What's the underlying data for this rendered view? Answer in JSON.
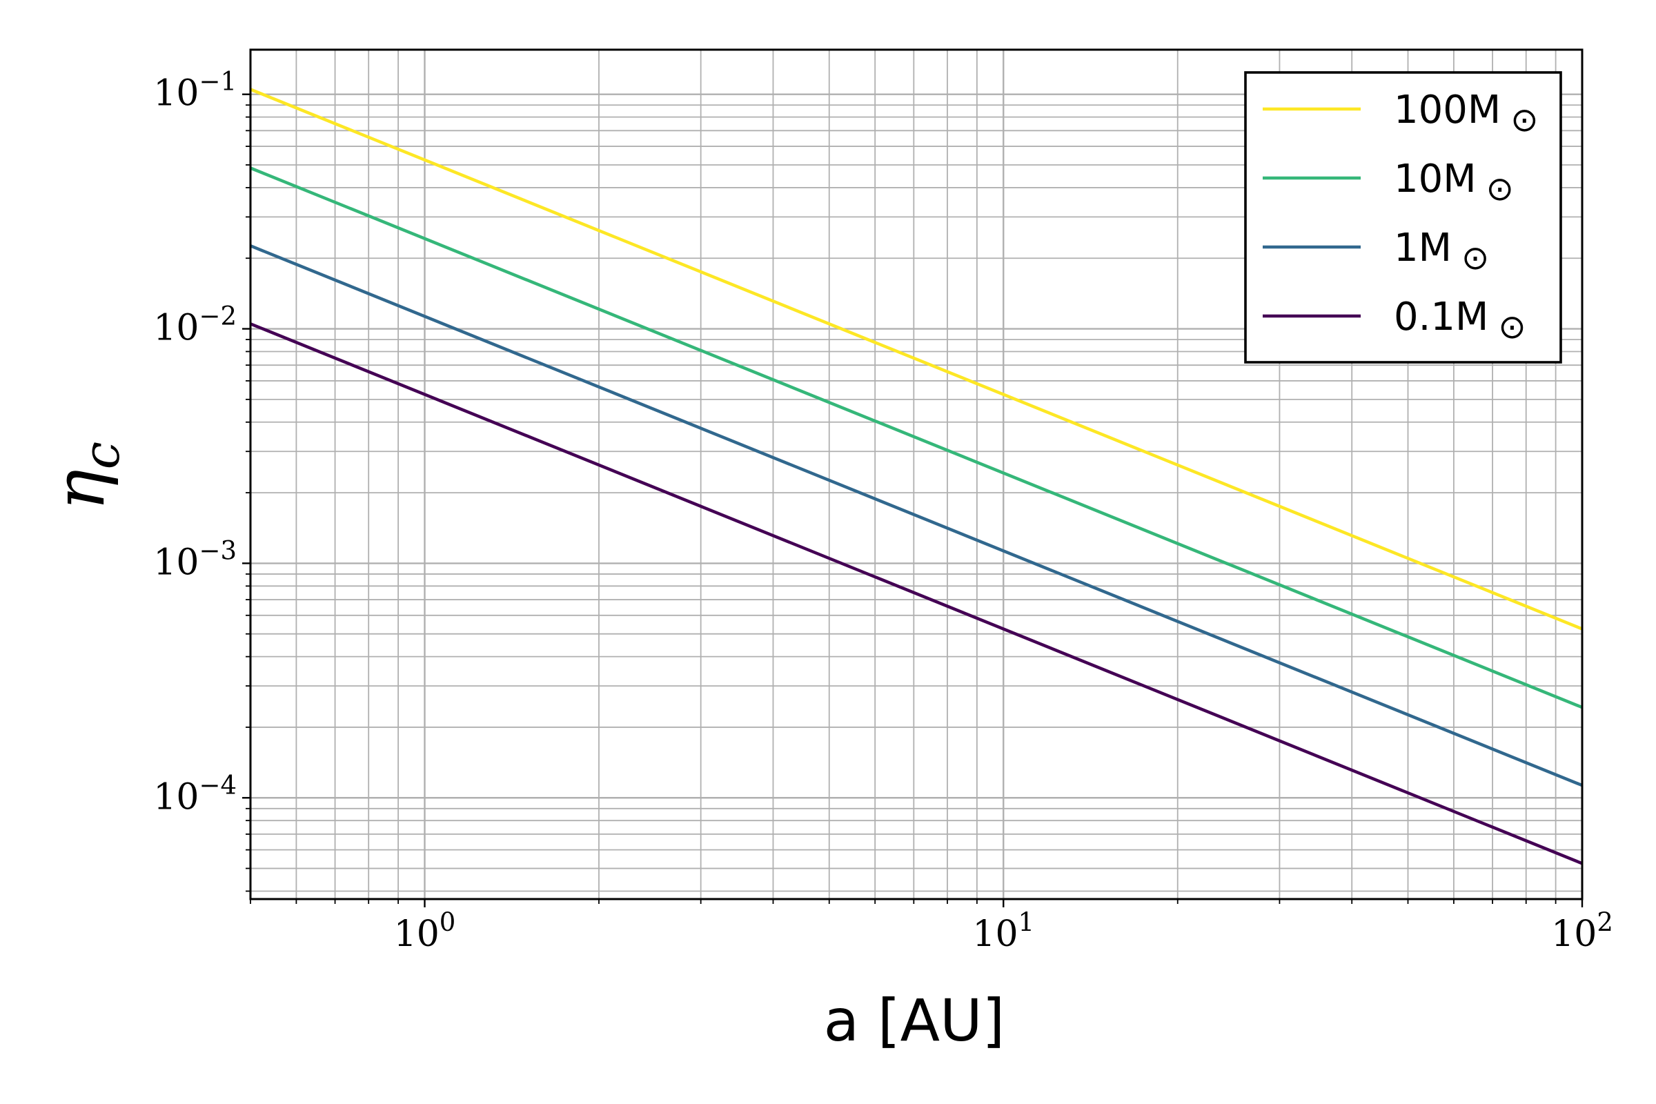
{
  "chart_data": {
    "type": "line",
    "title": "",
    "xlabel": "a [AU]",
    "ylabel_base": "η",
    "ylabel_sub": "c",
    "x_scale": "log",
    "y_scale": "log",
    "xlim": [
      0.5,
      100
    ],
    "ylim": [
      3.7e-05,
      0.155
    ],
    "x_ticks": [
      {
        "base": "10",
        "exp": "0",
        "value": 1
      },
      {
        "base": "10",
        "exp": "1",
        "value": 10
      },
      {
        "base": "10",
        "exp": "2",
        "value": 100
      }
    ],
    "y_ticks": [
      {
        "base": "10",
        "exp": "−4",
        "value": 0.0001
      },
      {
        "base": "10",
        "exp": "−3",
        "value": 0.001
      },
      {
        "base": "10",
        "exp": "−2",
        "value": 0.01
      },
      {
        "base": "10",
        "exp": "−1",
        "value": 0.1
      }
    ],
    "grid": true,
    "legend_position": "top-right",
    "series": [
      {
        "name": "100M",
        "symbol": "⊙",
        "color": "#fde725",
        "x": [
          0.5,
          100
        ],
        "y": [
          0.105,
          0.000525
        ]
      },
      {
        "name": "10M",
        "symbol": "⊙",
        "color": "#35b779",
        "x": [
          0.5,
          100
        ],
        "y": [
          0.0485,
          0.000243
        ]
      },
      {
        "name": "1M",
        "symbol": "⊙",
        "color": "#31688e",
        "x": [
          0.5,
          100
        ],
        "y": [
          0.0226,
          0.000113
        ]
      },
      {
        "name": "0.1M",
        "symbol": "⊙",
        "color": "#440154",
        "x": [
          0.5,
          100
        ],
        "y": [
          0.0105,
          5.25e-05
        ]
      }
    ]
  }
}
